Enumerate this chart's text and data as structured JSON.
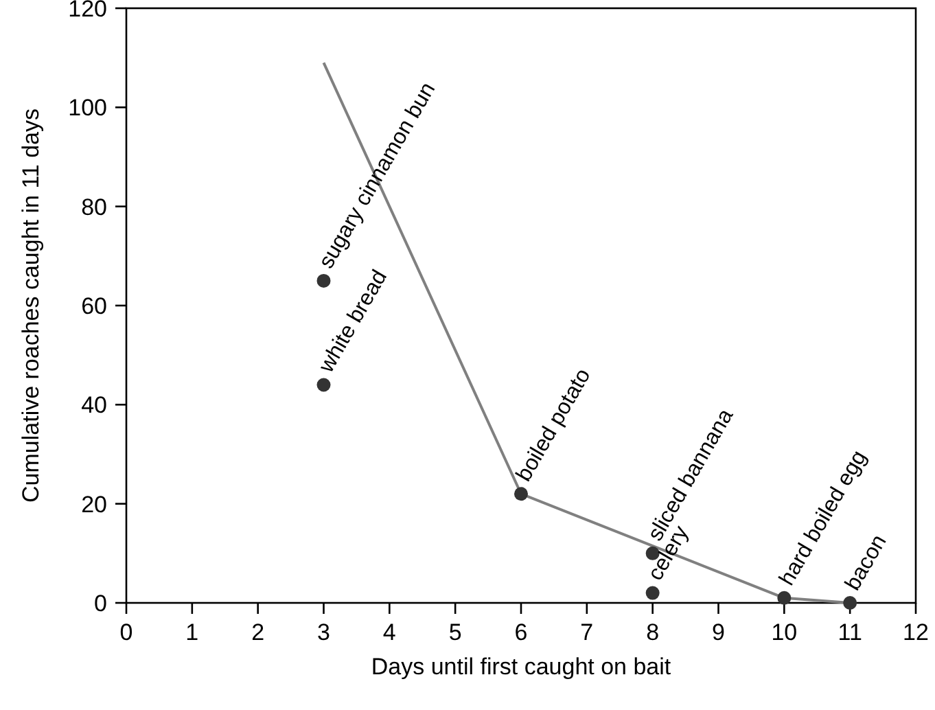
{
  "chart_data": {
    "type": "scatter",
    "xlabel": "Days until first caught on bait",
    "ylabel": "Cumulative roaches caught in 11 days",
    "xlim": [
      0,
      12
    ],
    "xticks": [
      0,
      1,
      2,
      3,
      4,
      5,
      6,
      7,
      8,
      9,
      10,
      11,
      12
    ],
    "ylim": [
      0,
      120
    ],
    "yticks": [
      0,
      20,
      40,
      60,
      80,
      100,
      120
    ],
    "grid": false,
    "marker": "circle",
    "series": [
      {
        "color": "#333333",
        "x": [
          3,
          3,
          6,
          8,
          8,
          10,
          11
        ],
        "values": [
          65,
          44,
          22,
          10,
          2,
          1,
          0
        ]
      },
      {
        "type": "line",
        "color": "#808080",
        "x": [
          3,
          6,
          10,
          11
        ],
        "values": [
          109,
          22,
          1,
          0
        ],
        "marker": "none"
      }
    ],
    "annotations": [
      {
        "text": "sugary cinnamon bun",
        "x": 3,
        "y": 65
      },
      {
        "text": "white bread",
        "x": 3,
        "y": 44
      },
      {
        "text": "boiled potato",
        "x": 6,
        "y": 22
      },
      {
        "text": "sliced bannana",
        "x": 8,
        "y": 10
      },
      {
        "text": "celery",
        "x": 8,
        "y": 2
      },
      {
        "text": "hard boiled egg",
        "x": 10,
        "y": 1
      },
      {
        "text": "bacon",
        "x": 11,
        "y": 0
      }
    ]
  }
}
